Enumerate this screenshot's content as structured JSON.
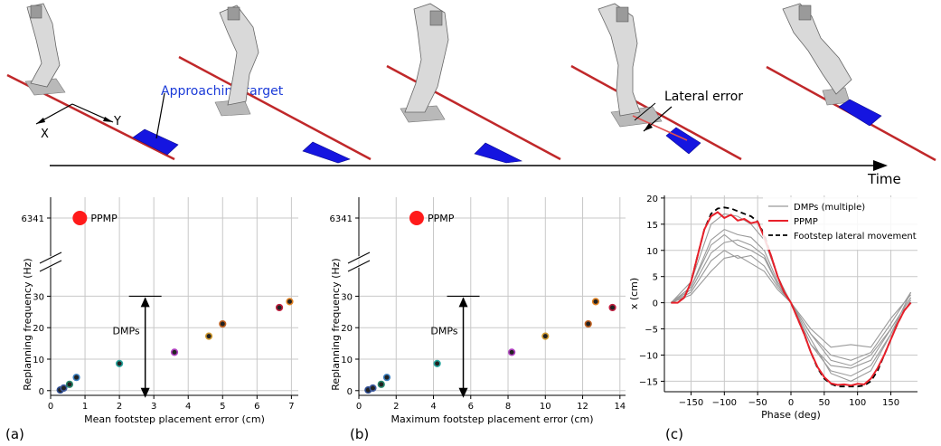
{
  "top": {
    "approach_label": "Approaching target",
    "axis_x_label": "X",
    "axis_y_label": "Y",
    "lateral_error_label": "Lateral error",
    "time_label": "Time"
  },
  "panels": {
    "a_label": "(a)",
    "b_label": "(b)",
    "c_label": "(c)"
  },
  "chart_data": [
    {
      "type": "scatter",
      "xlabel": "Mean footstep placement error (cm)",
      "ylabel": "Replanning frequency (Hz)",
      "xlim": [
        0,
        7.2
      ],
      "xticks": [
        0,
        1,
        2,
        3,
        4,
        5,
        6,
        7
      ],
      "yticks": [
        0,
        10,
        20,
        30
      ],
      "ybreak_value": 6341,
      "ppmp": {
        "name": "PPMP",
        "x": 0.85,
        "y": 6341,
        "color": "#ff1a1a"
      },
      "dmps_label": "DMPs",
      "dmps_arrow_x": 2.75,
      "dmps_arrow_range": [
        0,
        30
      ],
      "points": [
        {
          "x": 0.28,
          "y": 0.2,
          "edge": "#2d4b8f"
        },
        {
          "x": 0.38,
          "y": 0.8,
          "edge": "#3d5aa0"
        },
        {
          "x": 0.55,
          "y": 2.0,
          "edge": "#2a8a6e"
        },
        {
          "x": 0.75,
          "y": 4.2,
          "edge": "#3b7fc0"
        },
        {
          "x": 2.0,
          "y": 8.6,
          "edge": "#2aa7a0"
        },
        {
          "x": 3.6,
          "y": 12.2,
          "edge": "#b040c0"
        },
        {
          "x": 4.6,
          "y": 17.3,
          "edge": "#d09a30"
        },
        {
          "x": 5.0,
          "y": 21.2,
          "edge": "#c06020"
        },
        {
          "x": 6.65,
          "y": 26.4,
          "edge": "#c02040"
        },
        {
          "x": 6.95,
          "y": 28.3,
          "edge": "#e08020"
        }
      ]
    },
    {
      "type": "scatter",
      "xlabel": "Maximum footstep placement error (cm)",
      "ylabel": "Replanning frequency (Hz)",
      "xlim": [
        0,
        14.3
      ],
      "xticks": [
        0,
        2,
        4,
        6,
        8,
        10,
        12,
        14
      ],
      "yticks": [
        0,
        10,
        20,
        30
      ],
      "ybreak_value": 6341,
      "ppmp": {
        "name": "PPMP",
        "x": 3.1,
        "y": 6341,
        "color": "#ff1a1a"
      },
      "dmps_label": "DMPs",
      "dmps_arrow_x": 5.6,
      "dmps_arrow_range": [
        0,
        30
      ],
      "points": [
        {
          "x": 0.5,
          "y": 0.2,
          "edge": "#2d4b8f"
        },
        {
          "x": 0.75,
          "y": 0.8,
          "edge": "#3d5aa0"
        },
        {
          "x": 1.2,
          "y": 2.0,
          "edge": "#2a8a6e"
        },
        {
          "x": 1.5,
          "y": 4.2,
          "edge": "#3b7fc0"
        },
        {
          "x": 4.2,
          "y": 8.6,
          "edge": "#2aa7a0"
        },
        {
          "x": 8.2,
          "y": 12.2,
          "edge": "#b040c0"
        },
        {
          "x": 10.0,
          "y": 17.3,
          "edge": "#d09a30"
        },
        {
          "x": 12.3,
          "y": 21.2,
          "edge": "#c06020"
        },
        {
          "x": 12.7,
          "y": 28.3,
          "edge": "#e08020"
        },
        {
          "x": 13.6,
          "y": 26.4,
          "edge": "#c02040"
        }
      ]
    },
    {
      "type": "line",
      "xlabel": "Phase (deg)",
      "ylabel": "x (cm)",
      "xlim": [
        -190,
        190
      ],
      "ylim": [
        -17,
        20.5
      ],
      "xticks": [
        -150,
        -100,
        -50,
        0,
        50,
        100,
        150
      ],
      "yticks": [
        20,
        15,
        10,
        5,
        0,
        -5,
        -10,
        -15
      ],
      "legend": [
        "DMPs (multiple)",
        "PPMP",
        "Footstep lateral movement"
      ],
      "reference": {
        "name": "Footstep lateral movement",
        "x": [
          -180,
          -170,
          -160,
          -150,
          -140,
          -130,
          -120,
          -110,
          -100,
          -90,
          -80,
          -70,
          -60,
          -50,
          -40,
          -30,
          -20,
          -10,
          0,
          10,
          20,
          30,
          40,
          50,
          60,
          70,
          80,
          90,
          100,
          110,
          120,
          130,
          140,
          150,
          160,
          170,
          180
        ],
        "y": [
          0,
          0,
          1,
          4,
          9,
          14,
          17,
          18,
          18.2,
          18,
          17.5,
          17,
          16.5,
          15.5,
          13,
          9,
          5,
          2,
          0,
          -3,
          -6,
          -9.5,
          -12.5,
          -14.5,
          -15.5,
          -16,
          -16,
          -16,
          -16,
          -15.8,
          -15,
          -13,
          -10,
          -7,
          -4,
          -1.5,
          0
        ]
      },
      "ppmp_x": [
        -180,
        -170,
        -160,
        -150,
        -140,
        -130,
        -120,
        -110,
        -100,
        -90,
        -80,
        -70,
        -60,
        -50,
        -40,
        -30,
        -20,
        -10,
        0,
        10,
        20,
        30,
        40,
        50,
        60,
        70,
        80,
        90,
        100,
        110,
        120,
        130,
        140,
        150,
        160,
        170,
        180
      ],
      "ppmp_y": [
        0,
        0,
        1,
        4,
        9,
        14,
        16.5,
        17.3,
        16.2,
        16.8,
        15.7,
        16,
        15.2,
        15.5,
        12.5,
        9,
        5,
        2,
        0,
        -3,
        -6,
        -9.5,
        -12.3,
        -14.2,
        -15.4,
        -15.7,
        -15.6,
        -15.8,
        -15.5,
        -15.6,
        -14.5,
        -12.5,
        -10,
        -7,
        -4,
        -1.5,
        0
      ],
      "dmps": [
        {
          "x": [
            -180,
            -150,
            -120,
            -100,
            -80,
            -60,
            -40,
            -20,
            0,
            30,
            60,
            90,
            120,
            150,
            180
          ],
          "y": [
            0,
            4,
            15,
            17,
            16.5,
            15,
            12,
            5,
            0,
            -8,
            -13,
            -14,
            -12,
            -6,
            2
          ]
        },
        {
          "x": [
            -180,
            -150,
            -120,
            -100,
            -80,
            -60,
            -40,
            -20,
            0,
            30,
            60,
            90,
            120,
            150,
            180
          ],
          "y": [
            0,
            3,
            12,
            14,
            13,
            12.5,
            10,
            4,
            0,
            -6,
            -10,
            -11,
            -9.5,
            -4,
            2
          ]
        },
        {
          "x": [
            -180,
            -150,
            -120,
            -100,
            -80,
            -60,
            -40,
            -20,
            0,
            30,
            60,
            90,
            120,
            150,
            180
          ],
          "y": [
            0,
            2.5,
            9.5,
            11.5,
            12,
            11,
            9,
            3.5,
            0,
            -5,
            -8.5,
            -8,
            -8.5,
            -3,
            1.5
          ]
        },
        {
          "x": [
            -180,
            -150,
            -120,
            -100,
            -80,
            -60,
            -40,
            -20,
            0,
            30,
            60,
            90,
            120,
            150,
            180
          ],
          "y": [
            0,
            2,
            8,
            10,
            8.5,
            9,
            7,
            3,
            0,
            -6,
            -11,
            -12,
            -10,
            -5,
            1
          ]
        },
        {
          "x": [
            -180,
            -150,
            -120,
            -100,
            -80,
            -60,
            -40,
            -20,
            0,
            30,
            60,
            90,
            120,
            150,
            180
          ],
          "y": [
            0,
            1.5,
            6,
            8.5,
            9,
            7.5,
            6,
            2.5,
            0,
            -7,
            -13.5,
            -15,
            -13,
            -6,
            0.5
          ]
        },
        {
          "x": [
            -180,
            -150,
            -120,
            -100,
            -80,
            -60,
            -40,
            -20,
            0,
            30,
            60,
            90,
            120,
            150,
            180
          ],
          "y": [
            0,
            3,
            11,
            13,
            11,
            10,
            8.5,
            3.5,
            0,
            -8,
            -12,
            -12.5,
            -11,
            -5,
            1
          ]
        }
      ]
    }
  ]
}
